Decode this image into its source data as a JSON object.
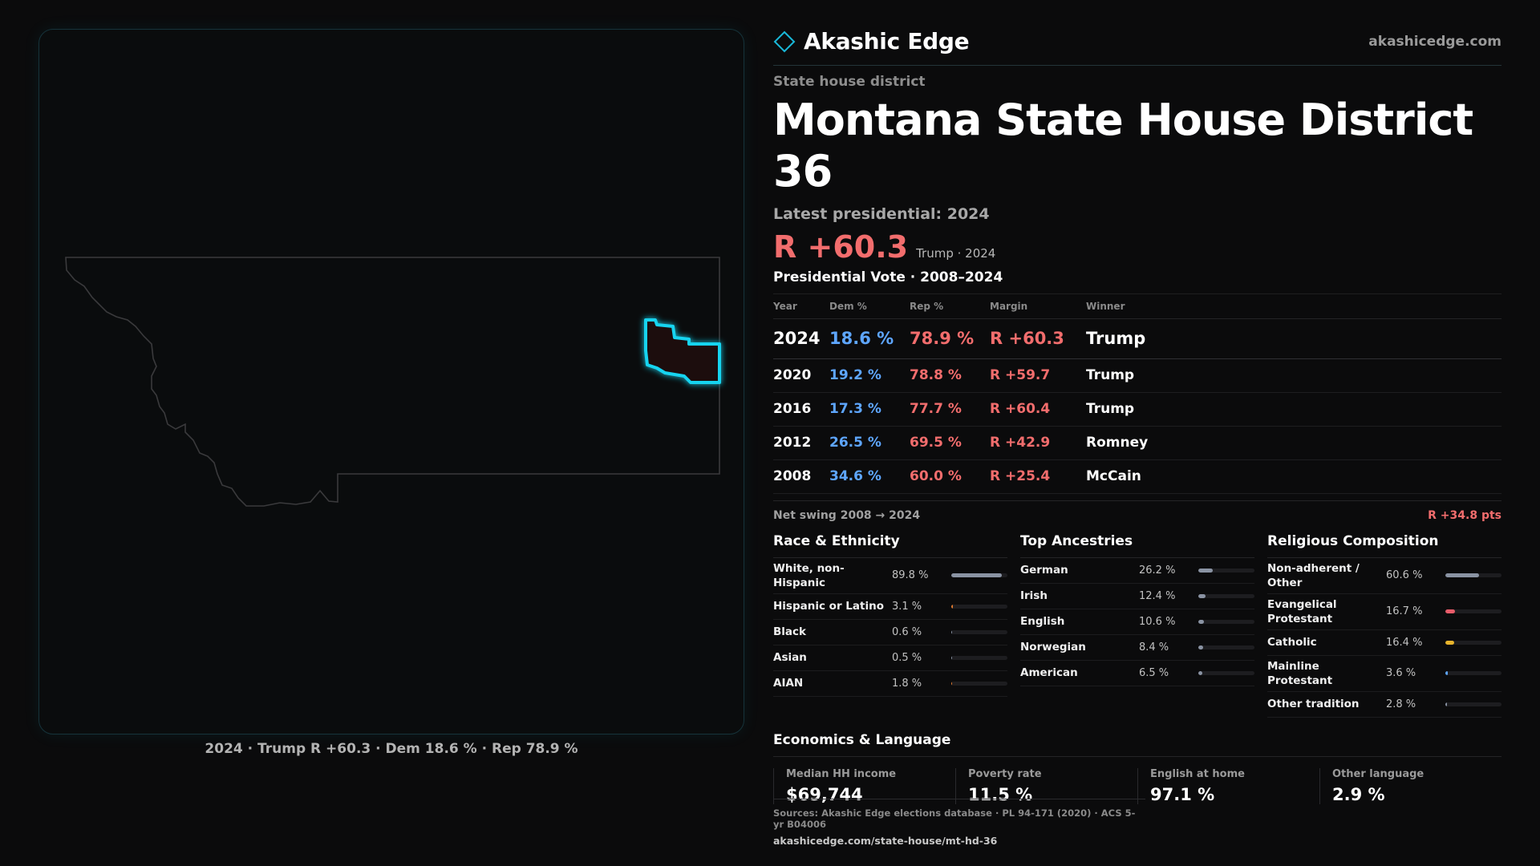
{
  "map": {
    "caption": "2024 · Trump R +60.3 · Dem 18.6 % · Rep 78.9 %"
  },
  "header": {
    "brand": "Akashic Edge",
    "domain": "akashicedge.com",
    "kicker": "State house district",
    "title": "Montana State House District 36",
    "latest_label": "Latest presidential: 2024",
    "big_margin": "R +60.3",
    "margin_sub": "Trump · 2024"
  },
  "votes": {
    "title": "Presidential Vote · 2008–2024",
    "headers": [
      "Year",
      "Dem %",
      "Rep %",
      "Margin",
      "Winner"
    ],
    "rows": [
      {
        "year": "2024",
        "dem": "18.6 %",
        "rep": "78.9 %",
        "margin": "R +60.3",
        "winner": "Trump"
      },
      {
        "year": "2020",
        "dem": "19.2 %",
        "rep": "78.8 %",
        "margin": "R +59.7",
        "winner": "Trump"
      },
      {
        "year": "2016",
        "dem": "17.3 %",
        "rep": "77.7 %",
        "margin": "R +60.4",
        "winner": "Trump"
      },
      {
        "year": "2012",
        "dem": "26.5 %",
        "rep": "69.5 %",
        "margin": "R +42.9",
        "winner": "Romney"
      },
      {
        "year": "2008",
        "dem": "34.6 %",
        "rep": "60.0 %",
        "margin": "R +25.4",
        "winner": "McCain"
      }
    ],
    "swing_label": "Net swing 2008 → 2024",
    "swing_value": "R +34.8 pts"
  },
  "race": {
    "title": "Race & Ethnicity",
    "items": [
      {
        "label": "White, non-Hispanic",
        "value": "89.8 %",
        "pct": 89.8,
        "color": "#8a93a3"
      },
      {
        "label": "Hispanic or Latino",
        "value": "3.1 %",
        "pct": 3.1,
        "color": "#e07a2f"
      },
      {
        "label": "Black",
        "value": "0.6 %",
        "pct": 0.6,
        "color": "#8a93a3"
      },
      {
        "label": "Asian",
        "value": "0.5 %",
        "pct": 0.5,
        "color": "#8a93a3"
      },
      {
        "label": "AIAN",
        "value": "1.8 %",
        "pct": 1.8,
        "color": "#e07a2f"
      }
    ]
  },
  "ancestry": {
    "title": "Top Ancestries",
    "items": [
      {
        "label": "German",
        "value": "26.2 %",
        "pct": 26.2,
        "color": "#8a93a3"
      },
      {
        "label": "Irish",
        "value": "12.4 %",
        "pct": 12.4,
        "color": "#8a93a3"
      },
      {
        "label": "English",
        "value": "10.6 %",
        "pct": 10.6,
        "color": "#8a93a3"
      },
      {
        "label": "Norwegian",
        "value": "8.4 %",
        "pct": 8.4,
        "color": "#8a93a3"
      },
      {
        "label": "American",
        "value": "6.5 %",
        "pct": 6.5,
        "color": "#8a93a3"
      }
    ]
  },
  "religion": {
    "title": "Religious Composition",
    "items": [
      {
        "label": "Non-adherent / Other",
        "value": "60.6 %",
        "pct": 60.6,
        "color": "#8a93a3"
      },
      {
        "label": "Evangelical Protestant",
        "value": "16.7 %",
        "pct": 16.7,
        "color": "#e85c6a"
      },
      {
        "label": "Catholic",
        "value": "16.4 %",
        "pct": 16.4,
        "color": "#e8b42c"
      },
      {
        "label": "Mainline Protestant",
        "value": "3.6 %",
        "pct": 3.6,
        "color": "#5ea6ff"
      },
      {
        "label": "Other tradition",
        "value": "2.8 %",
        "pct": 2.8,
        "color": "#8a93a3"
      }
    ]
  },
  "economics": {
    "title": "Economics & Language",
    "items": [
      {
        "label": "Median HH income",
        "value": "$69,744"
      },
      {
        "label": "Poverty rate",
        "value": "11.5 %"
      },
      {
        "label": "English at home",
        "value": "97.1 %"
      },
      {
        "label": "Other language",
        "value": "2.9 %"
      }
    ]
  },
  "footer": {
    "sources": "Sources: Akashic Edge elections database · PL 94-171 (2020) · ACS 5-yr B04006",
    "url": "akashicedge.com/state-house/mt-hd-36"
  },
  "colors": {
    "dem": "#5ea6ff",
    "rep": "#f26d6d",
    "highlight": "#19d4f0"
  }
}
